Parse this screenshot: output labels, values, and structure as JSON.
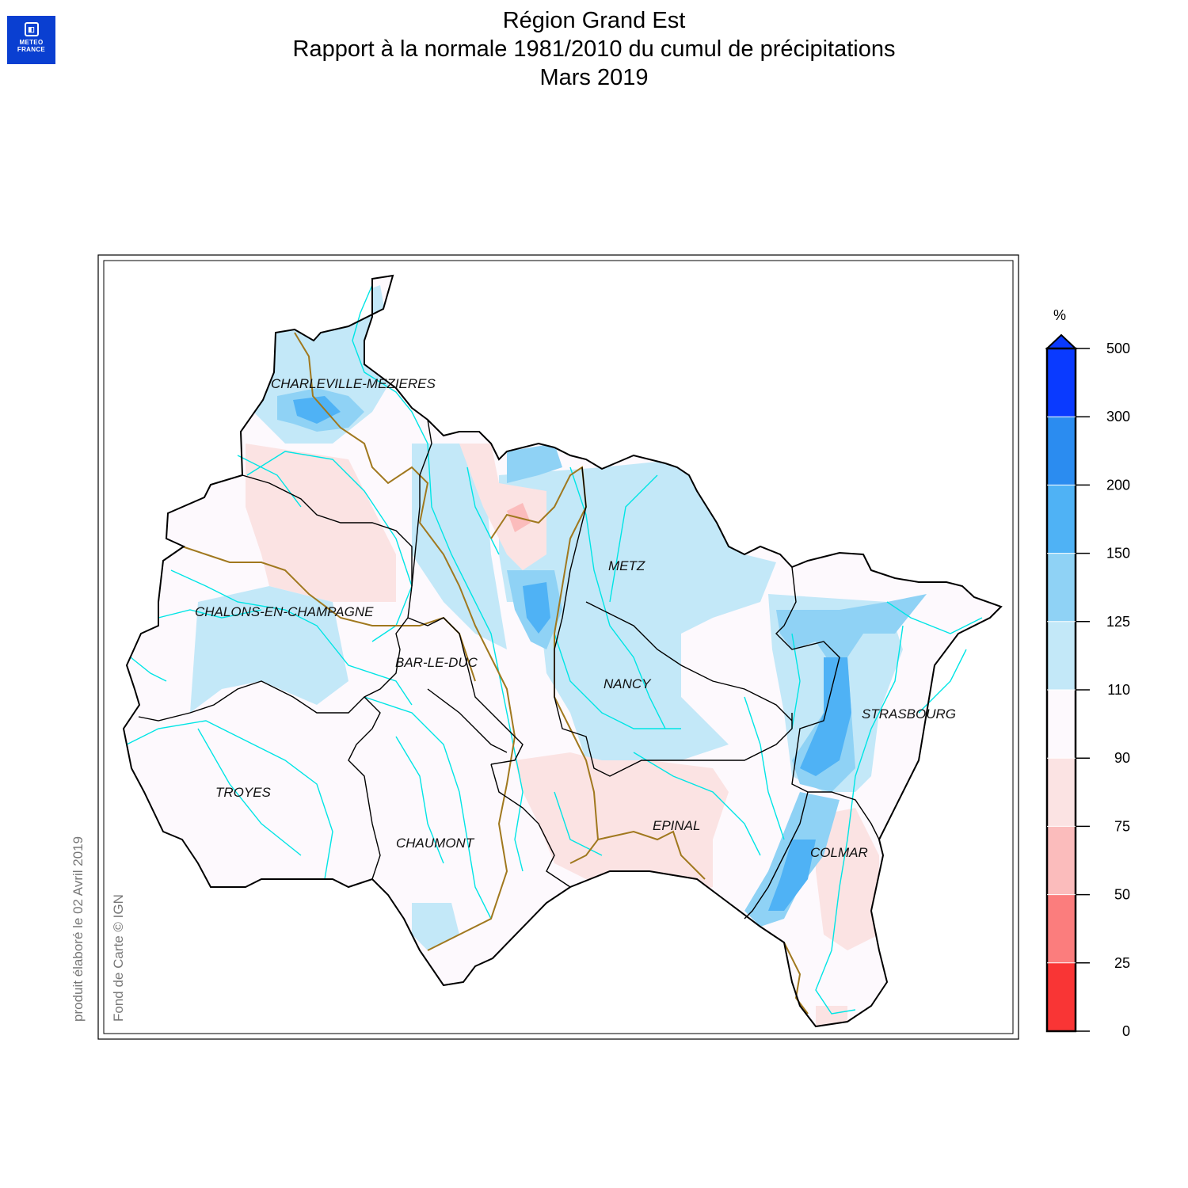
{
  "header": {
    "logo_line1": "METEO",
    "logo_line2": "FRANCE",
    "title": "Région Grand Est",
    "subtitle": "Rapport à la normale 1981/2010 du cumul de précipitations",
    "period": "Mars 2019"
  },
  "cities": [
    {
      "name": "CHARLEVILLE-MEZIERES"
    },
    {
      "name": "METZ"
    },
    {
      "name": "CHALONS-EN-CHAMPAGNE"
    },
    {
      "name": "BAR-LE-DUC"
    },
    {
      "name": "NANCY"
    },
    {
      "name": "STRASBOURG"
    },
    {
      "name": "TROYES"
    },
    {
      "name": "EPINAL"
    },
    {
      "name": "CHAUMONT"
    },
    {
      "name": "COLMAR"
    }
  ],
  "legend": {
    "unit": "%",
    "ticks": [
      "500",
      "300",
      "200",
      "150",
      "125",
      "110",
      "90",
      "75",
      "50",
      "25",
      "0"
    ],
    "colors": [
      "#0a3aff",
      "#2b8cf0",
      "#4fb2f5",
      "#8fd2f5",
      "#c3e8f8",
      "#fdf9fd",
      "#fbe3e3",
      "#fbbcbc",
      "#fb7d7d",
      "#f93535"
    ]
  },
  "notes": {
    "produced": "produit élaboré le 02 Avril 2019",
    "basemap": "Fond de Carte © IGN"
  }
}
